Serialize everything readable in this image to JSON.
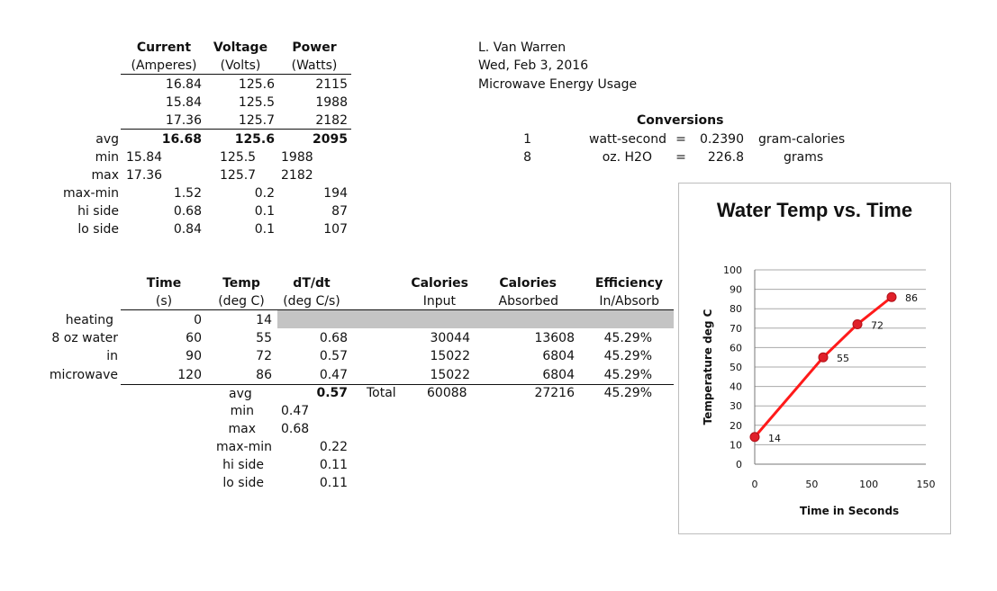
{
  "power_table": {
    "headers": [
      {
        "name": "Current",
        "unit": "(Amperes)"
      },
      {
        "name": "Voltage",
        "unit": "(Volts)"
      },
      {
        "name": "Power",
        "unit": "(Watts)"
      }
    ],
    "rows": [
      [
        "16.84",
        "125.6",
        "2115"
      ],
      [
        "15.84",
        "125.5",
        "1988"
      ],
      [
        "17.36",
        "125.7",
        "2182"
      ]
    ],
    "avg": {
      "label": "avg",
      "values": [
        "16.68",
        "125.6",
        "2095"
      ]
    },
    "min": {
      "label": "min",
      "values": [
        "15.84",
        "125.5",
        "1988"
      ]
    },
    "max": {
      "label": "max",
      "values": [
        "17.36",
        "125.7",
        "2182"
      ]
    },
    "max_min": {
      "label": "max-min",
      "values": [
        "1.52",
        "0.2",
        "194"
      ]
    },
    "hi_side": {
      "label": "hi side",
      "values": [
        "0.68",
        "0.1",
        "87"
      ]
    },
    "lo_side": {
      "label": "lo side",
      "values": [
        "0.84",
        "0.1",
        "107"
      ]
    }
  },
  "author": {
    "name": "L. Van Warren",
    "date": "Wed, Feb 3, 2016",
    "title": "Microwave Energy Usage"
  },
  "conversions": {
    "title": "Conversions",
    "rows": [
      {
        "qty": "1",
        "unit": "watt-second",
        "eq": "=",
        "value": "0.2390",
        "result": "gram-calories"
      },
      {
        "qty": "8",
        "unit": "oz. H2O",
        "eq": "=",
        "value": "226.8",
        "result": "grams"
      }
    ]
  },
  "temp_table": {
    "headers": [
      {
        "name": "Time",
        "unit": "(s)"
      },
      {
        "name": "Temp",
        "unit": "(deg C)"
      },
      {
        "name": "dT/dt",
        "unit": "(deg C/s)"
      },
      {
        "name": "Calories",
        "unit": "Input"
      },
      {
        "name": "Calories",
        "unit": "Absorbed"
      },
      {
        "name": "Efficiency",
        "unit": "In/Absorb"
      }
    ],
    "row_labels": [
      "heating",
      "8 oz water",
      "in",
      "microwave"
    ],
    "rows": [
      {
        "time": "0",
        "temp": "14",
        "dtdt": "",
        "cal_in": "",
        "cal_abs": "",
        "eff": ""
      },
      {
        "time": "60",
        "temp": "55",
        "dtdt": "0.68",
        "cal_in": "30044",
        "cal_abs": "13608",
        "eff": "45.29%"
      },
      {
        "time": "90",
        "temp": "72",
        "dtdt": "0.57",
        "cal_in": "15022",
        "cal_abs": "6804",
        "eff": "45.29%"
      },
      {
        "time": "120",
        "temp": "86",
        "dtdt": "0.47",
        "cal_in": "15022",
        "cal_abs": "6804",
        "eff": "45.29%"
      }
    ],
    "avg_label": "avg",
    "avg_value": "0.57",
    "total_label": "Total",
    "total_cal_in": "60088",
    "total_cal_abs": "27216",
    "total_eff": "45.29%",
    "stats": [
      {
        "label": "min",
        "value": "0.47"
      },
      {
        "label": "max",
        "value": "0.68"
      },
      {
        "label": "max-min",
        "value": "0.22"
      },
      {
        "label": "hi side",
        "value": "0.11"
      },
      {
        "label": "lo side",
        "value": "0.11"
      }
    ]
  },
  "chart_data": {
    "type": "line",
    "title": "Water Temp vs. Time",
    "xlabel": "Time in Seconds",
    "ylabel": "Temperature deg C",
    "x": [
      0,
      60,
      90,
      120
    ],
    "y": [
      14,
      55,
      72,
      86
    ],
    "data_labels": [
      "14",
      "55",
      "72",
      "86"
    ],
    "xlim": [
      0,
      150
    ],
    "ylim": [
      0,
      100
    ],
    "xticks": [
      0,
      50,
      100,
      150
    ],
    "yticks": [
      0,
      10,
      20,
      30,
      40,
      50,
      60,
      70,
      80,
      90,
      100
    ],
    "grid": true,
    "legend": "none",
    "line_color": "#ff1a1a",
    "marker_color": "#e0202a"
  }
}
